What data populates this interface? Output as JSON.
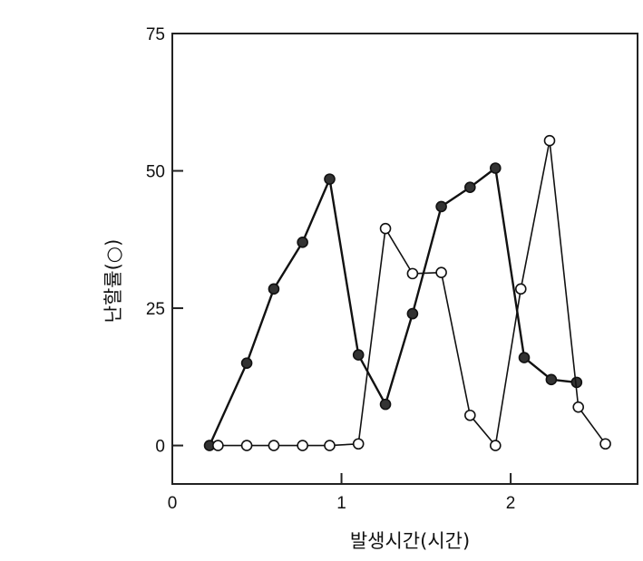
{
  "chart_data": {
    "type": "line",
    "title": "",
    "xlabel": "발생시간(시간)",
    "ylabel": "난할률(○)",
    "xlim": [
      0,
      2.75
    ],
    "ylim": [
      -7,
      75
    ],
    "xticks": [
      0,
      1,
      2
    ],
    "xtick_labels": [
      "0",
      "1",
      "2"
    ],
    "yticks": [
      0,
      25,
      50,
      75
    ],
    "ytick_labels": [
      "0",
      "25",
      "50",
      "75"
    ],
    "grid": false,
    "legend": "none",
    "series": [
      {
        "marker": "filled",
        "color": "#333333",
        "x": [
          0.22,
          0.44,
          0.6,
          0.77,
          0.93,
          1.1,
          1.26,
          1.42,
          1.59,
          1.76,
          1.91,
          2.08,
          2.24,
          2.39
        ],
        "y": [
          0,
          15,
          28.5,
          37,
          48.5,
          16.5,
          7.5,
          24,
          43.5,
          47,
          50.5,
          16,
          12,
          11.5
        ]
      },
      {
        "marker": "open",
        "color": "#111111",
        "x": [
          0.27,
          0.44,
          0.6,
          0.77,
          0.93,
          1.1,
          1.26,
          1.42,
          1.59,
          1.76,
          1.91,
          2.06,
          2.23,
          2.4,
          2.56
        ],
        "y": [
          0,
          0,
          0,
          0,
          0,
          0.3,
          39.5,
          31.3,
          31.5,
          5.5,
          0,
          28.5,
          55.5,
          7,
          0.3
        ]
      }
    ]
  }
}
